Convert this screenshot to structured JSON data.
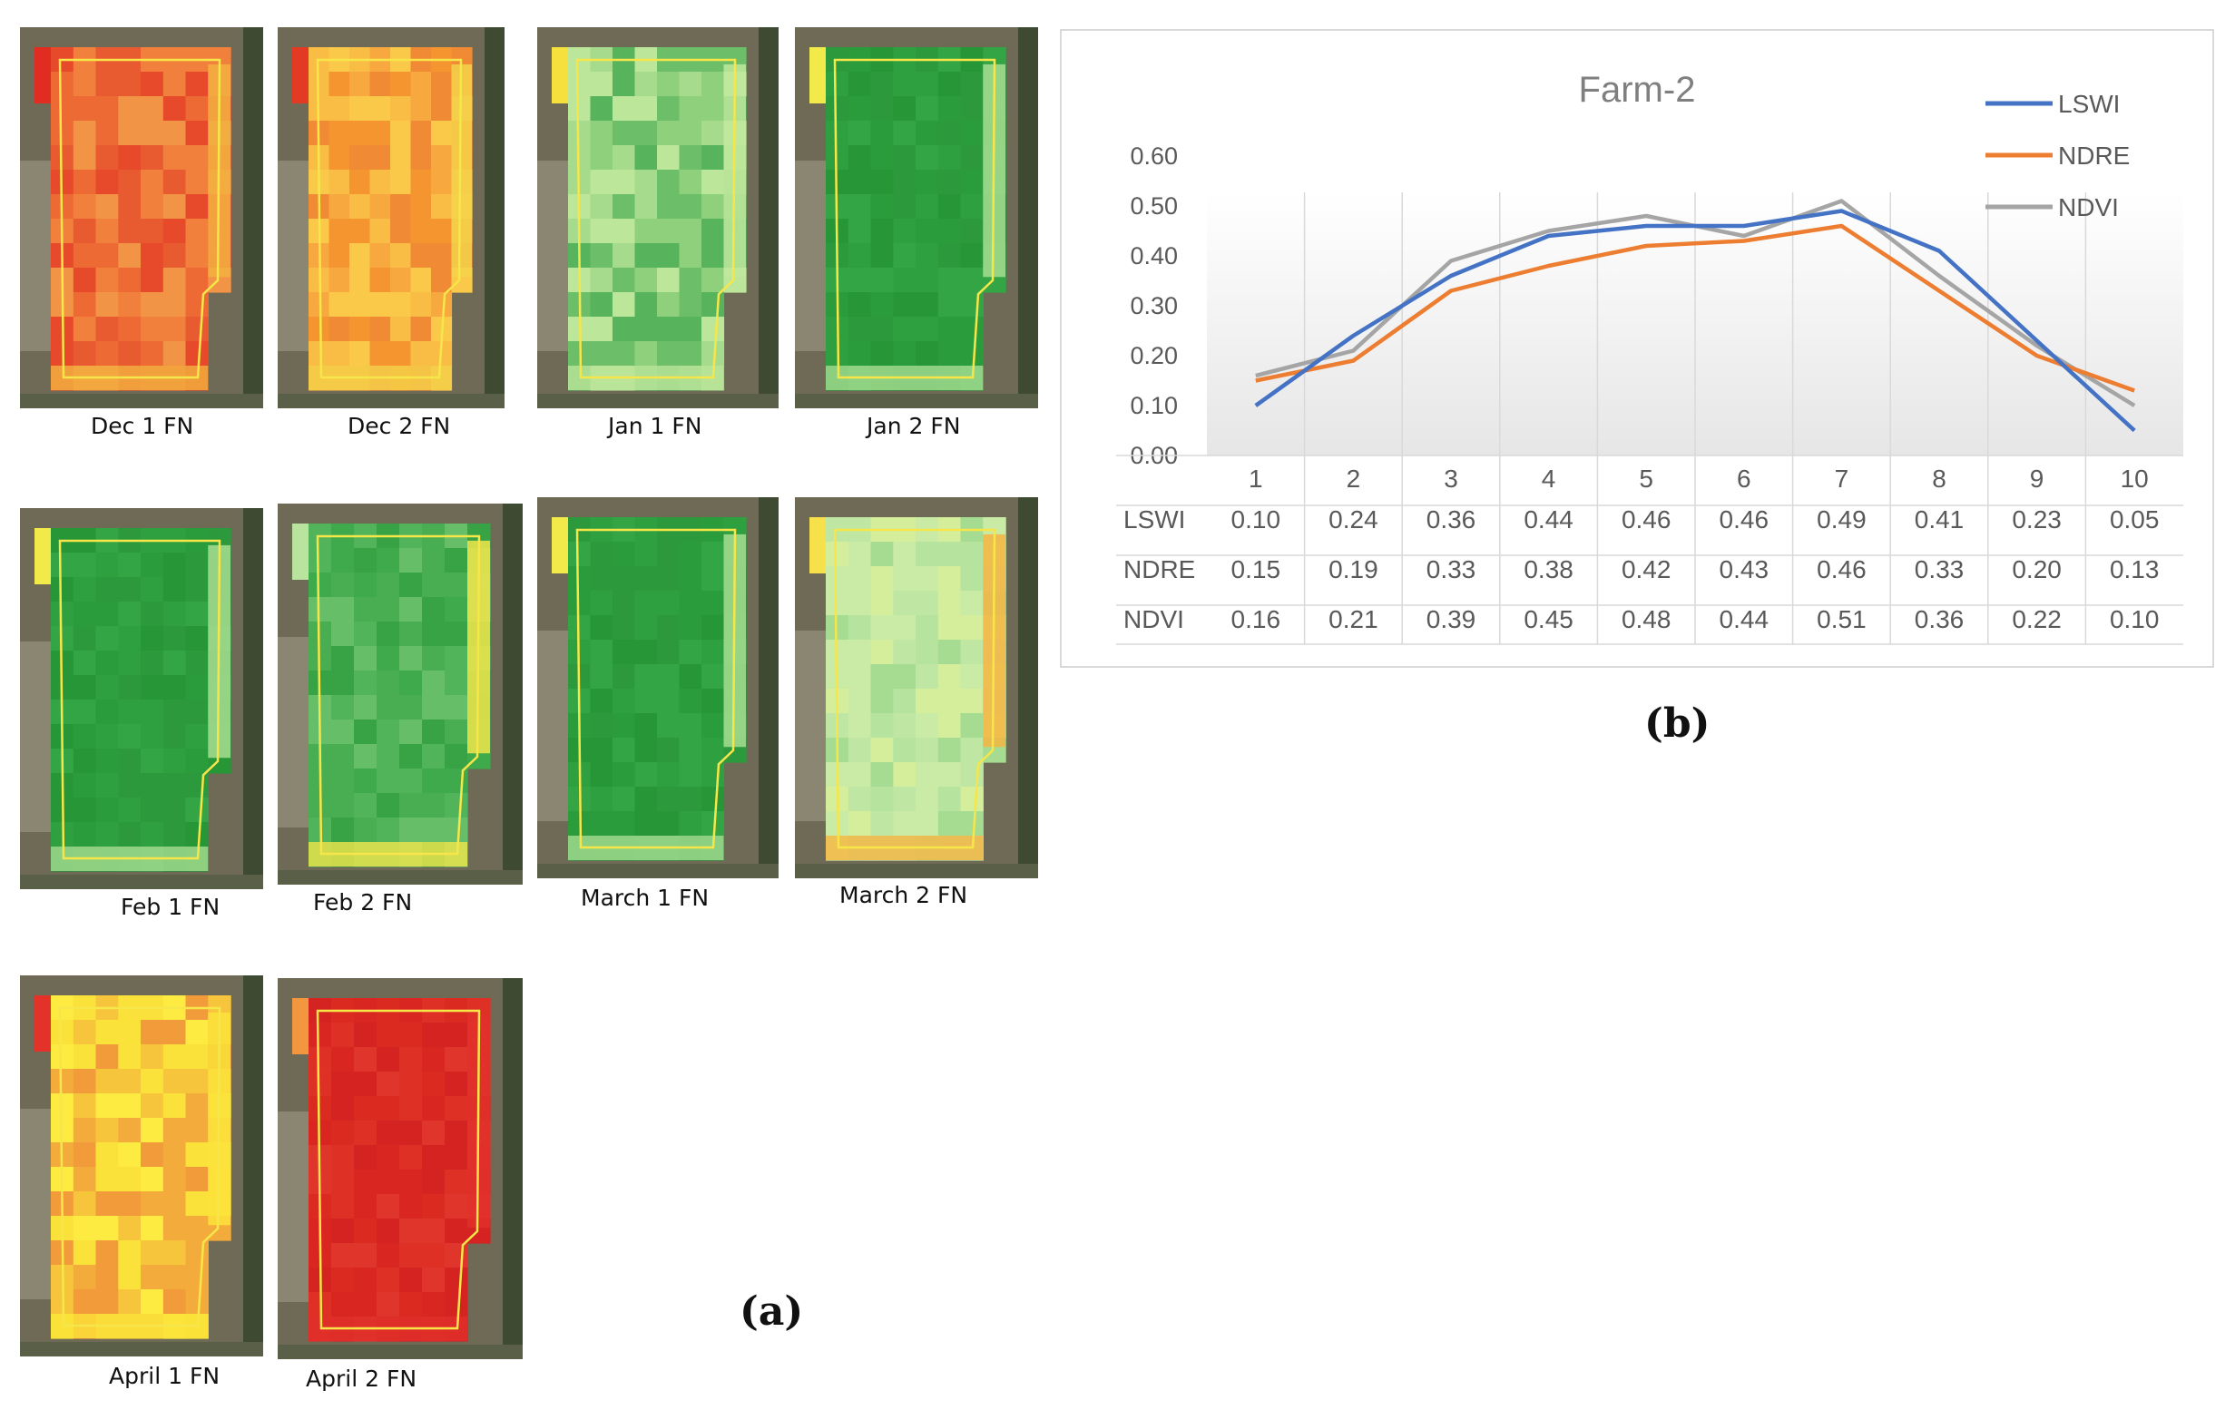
{
  "panel_a": {
    "label": "(a)",
    "images": [
      {
        "caption": "Dec 1 FN",
        "palette": "red-orange"
      },
      {
        "caption": "Dec 2 FN",
        "palette": "orange-yellow"
      },
      {
        "caption": "Jan 1 FN",
        "palette": "light-green"
      },
      {
        "caption": "Jan 2 FN",
        "palette": "dark-green"
      },
      {
        "caption": "Feb 1 FN",
        "palette": "dark-green"
      },
      {
        "caption": "Feb 2 FN",
        "palette": "medium-green"
      },
      {
        "caption": "March 1 FN",
        "palette": "dark-green"
      },
      {
        "caption": "March 2 FN",
        "palette": "pale-green"
      },
      {
        "caption": "April 1 FN",
        "palette": "yellow-orange"
      },
      {
        "caption": "April 2 FN",
        "palette": "red"
      }
    ]
  },
  "panel_b": {
    "label": "(b)"
  },
  "chart_data": {
    "type": "line",
    "title": "Farm-2",
    "categories": [
      "1",
      "2",
      "3",
      "4",
      "5",
      "6",
      "7",
      "8",
      "9",
      "10"
    ],
    "ylim": [
      0,
      0.6
    ],
    "yticks": [
      "0.00",
      "0.10",
      "0.20",
      "0.30",
      "0.40",
      "0.50",
      "0.60"
    ],
    "xlabel": "",
    "ylabel": "",
    "legend_position": "top-right",
    "data_table": true,
    "series": [
      {
        "name": "LSWI",
        "color": "#4472c4",
        "values": [
          0.1,
          0.24,
          0.36,
          0.44,
          0.46,
          0.46,
          0.49,
          0.41,
          0.23,
          0.05
        ],
        "labels": [
          "0.10",
          "0.24",
          "0.36",
          "0.44",
          "0.46",
          "0.46",
          "0.49",
          "0.41",
          "0.23",
          "0.05"
        ]
      },
      {
        "name": "NDRE",
        "color": "#ed7d31",
        "values": [
          0.15,
          0.19,
          0.33,
          0.38,
          0.42,
          0.43,
          0.46,
          0.33,
          0.2,
          0.13
        ],
        "labels": [
          "0.15",
          "0.19",
          "0.33",
          "0.38",
          "0.42",
          "0.43",
          "0.46",
          "0.33",
          "0.20",
          "0.13"
        ]
      },
      {
        "name": "NDVI",
        "color": "#a5a5a5",
        "values": [
          0.16,
          0.21,
          0.39,
          0.45,
          0.48,
          0.44,
          0.51,
          0.36,
          0.22,
          0.1
        ],
        "labels": [
          "0.16",
          "0.21",
          "0.39",
          "0.45",
          "0.48",
          "0.44",
          "0.51",
          "0.36",
          "0.22",
          "0.10"
        ]
      }
    ]
  }
}
